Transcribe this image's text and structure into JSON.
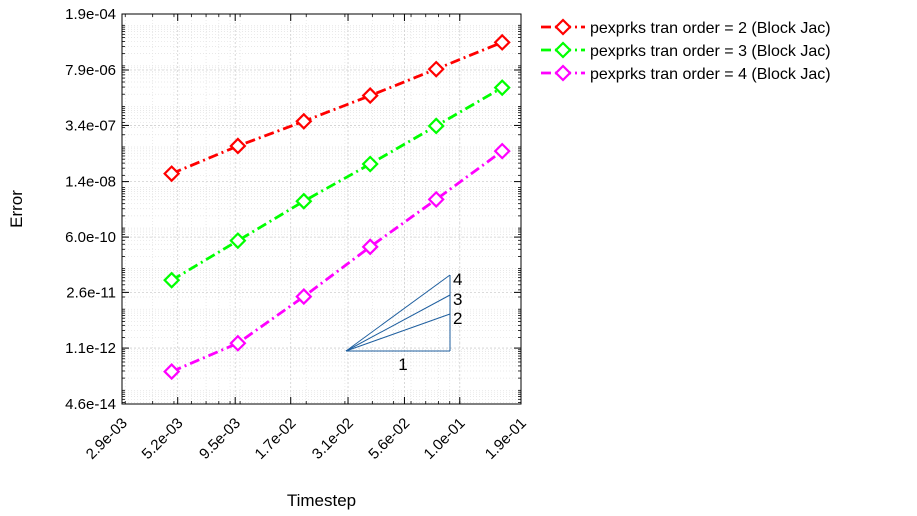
{
  "chart_data": {
    "type": "line",
    "xlabel": "Timestep",
    "ylabel": "Error",
    "x_scale": "log",
    "y_scale": "log",
    "xlim": [
      0.0029,
      0.19
    ],
    "ylim": [
      4.6e-14,
      0.00019
    ],
    "x_ticks": [
      "2.9e-03",
      "5.2e-03",
      "9.5e-03",
      "1.7e-02",
      "3.1e-02",
      "5.6e-02",
      "1.0e-01",
      "1.9e-01"
    ],
    "y_ticks": [
      "4.6e-14",
      "1.1e-12",
      "2.6e-11",
      "6.0e-10",
      "1.4e-08",
      "3.4e-07",
      "7.9e-06",
      "1.9e-04"
    ],
    "grid": true,
    "minor_grid": true,
    "legend_position": "outside-right-top",
    "x": [
      0.00488,
      0.00977,
      0.0195,
      0.0391,
      0.0781,
      0.156
    ],
    "series": [
      {
        "name": "pexprks tran order = 2 (Block Jac)",
        "color": "#ff0000",
        "marker": "diamond",
        "values": [
          2.2e-08,
          1.06e-07,
          4.3e-07,
          1.85e-06,
          8.3e-06,
          3.8e-05
        ]
      },
      {
        "name": "pexprks tran order = 3 (Block Jac)",
        "color": "#00ff00",
        "marker": "diamond",
        "values": [
          5.2e-11,
          4.9e-10,
          4.6e-09,
          3.8e-08,
          3.3e-07,
          2.9e-06
        ]
      },
      {
        "name": "pexprks tran order = 4 (Block Jac)",
        "color": "#ff00ff",
        "marker": "diamond",
        "values": [
          2.9e-13,
          1.45e-12,
          2.05e-11,
          3.45e-10,
          5.1e-09,
          7.9e-08
        ]
      }
    ],
    "slope_triangle": {
      "color": "#1f5f9f",
      "base_label": "1",
      "slope_labels": [
        "4",
        "3",
        "2"
      ]
    }
  }
}
